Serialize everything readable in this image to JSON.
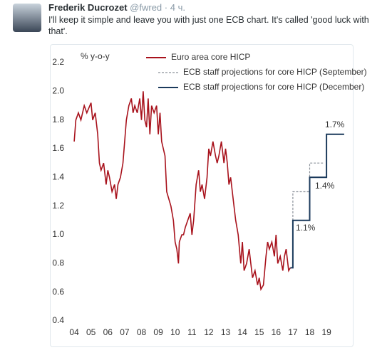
{
  "tweet": {
    "author": "Frederik Ducrozet",
    "handle": "@fwred",
    "time": "· 4 ч.",
    "text_lines": [
      "I'll keep it simple and leave you with just one ECB chart. It's called 'good luck with",
      "that'."
    ]
  },
  "chart_data": {
    "type": "line",
    "ylabel": "% y-o-y",
    "xlim": [
      3.7,
      20.35
    ],
    "ylim": [
      0.4,
      2.2
    ],
    "xticks": [
      {
        "value": 4,
        "label": "04"
      },
      {
        "value": 5,
        "label": "05"
      },
      {
        "value": 6,
        "label": "06"
      },
      {
        "value": 7,
        "label": "07"
      },
      {
        "value": 8,
        "label": "08"
      },
      {
        "value": 9,
        "label": "09"
      },
      {
        "value": 10,
        "label": "10"
      },
      {
        "value": 11,
        "label": "11"
      },
      {
        "value": 12,
        "label": "12"
      },
      {
        "value": 13,
        "label": "13"
      },
      {
        "value": 14,
        "label": "14"
      },
      {
        "value": 15,
        "label": "15"
      },
      {
        "value": 16,
        "label": "16"
      },
      {
        "value": 17,
        "label": "17"
      },
      {
        "value": 18,
        "label": "18"
      },
      {
        "value": 19,
        "label": "19"
      }
    ],
    "yticks": [
      0.4,
      0.6,
      0.8,
      {
        "value": 1,
        "label": "1.0"
      },
      1.2,
      1.4,
      1.6,
      1.8,
      {
        "value": 2,
        "label": "2.0"
      },
      2.2
    ],
    "grid": false,
    "series": [
      {
        "name": "Euro area core HICP",
        "color": "#a8121c",
        "dash": false,
        "x": [
          4.0,
          4.1,
          4.25,
          4.4,
          4.6,
          4.75,
          5.0,
          5.1,
          5.25,
          5.4,
          5.5,
          5.6,
          5.75,
          5.9,
          6.0,
          6.1,
          6.25,
          6.4,
          6.5,
          6.6,
          6.75,
          6.9,
          7.0,
          7.1,
          7.25,
          7.4,
          7.5,
          7.6,
          7.75,
          7.9,
          8.0,
          8.1,
          8.2,
          8.3,
          8.4,
          8.5,
          8.6,
          8.75,
          8.9,
          9.0,
          9.1,
          9.2,
          9.4,
          9.5,
          9.75,
          9.9,
          10.0,
          10.1,
          10.2,
          10.25,
          10.4,
          10.5,
          10.6,
          10.75,
          10.9,
          11.0,
          11.1,
          11.25,
          11.4,
          11.5,
          11.6,
          11.75,
          11.9,
          12.0,
          12.1,
          12.25,
          12.4,
          12.5,
          12.6,
          12.75,
          12.9,
          13.0,
          13.1,
          13.2,
          13.3,
          13.5,
          13.6,
          13.75,
          13.9,
          14.0,
          14.1,
          14.25,
          14.4,
          14.5,
          14.6,
          14.75,
          14.9,
          15.0,
          15.1,
          15.25,
          15.4,
          15.5,
          15.6,
          15.75,
          15.9,
          16.0,
          16.1,
          16.25,
          16.4,
          16.5,
          16.6,
          16.75,
          16.85
        ],
        "values": [
          1.65,
          1.8,
          1.85,
          1.8,
          1.9,
          1.85,
          1.92,
          1.8,
          1.85,
          1.7,
          1.5,
          1.45,
          1.5,
          1.35,
          1.45,
          1.4,
          1.3,
          1.35,
          1.25,
          1.35,
          1.4,
          1.5,
          1.65,
          1.8,
          1.9,
          1.95,
          1.85,
          1.9,
          1.85,
          1.95,
          1.8,
          2.0,
          1.8,
          1.75,
          1.95,
          1.7,
          1.9,
          1.85,
          1.9,
          1.7,
          1.85,
          1.65,
          1.55,
          1.3,
          1.2,
          1.1,
          0.95,
          0.9,
          0.8,
          0.95,
          1.0,
          1.0,
          1.05,
          1.1,
          1.15,
          1.0,
          1.1,
          1.35,
          1.45,
          1.3,
          1.35,
          1.25,
          1.4,
          1.6,
          1.55,
          1.65,
          1.55,
          1.5,
          1.55,
          1.65,
          1.5,
          1.6,
          1.5,
          1.35,
          1.4,
          1.2,
          1.1,
          1.0,
          0.8,
          0.95,
          0.75,
          0.8,
          0.9,
          0.8,
          0.7,
          0.75,
          0.65,
          0.7,
          0.62,
          0.65,
          0.85,
          0.95,
          0.9,
          0.95,
          0.85,
          1.0,
          0.8,
          0.85,
          0.75,
          0.85,
          0.9,
          0.75,
          0.77
        ]
      },
      {
        "name": "ECB staff projections for core HICP (September)",
        "color": "#8a9099",
        "dash": true,
        "x": [
          16.85,
          17,
          17,
          18,
          18,
          18.8
        ],
        "values": [
          0.77,
          0.77,
          1.3,
          1.3,
          1.5,
          1.5
        ]
      },
      {
        "name": "ECB staff projections for core HICP (December)",
        "color": "#1b3a5c",
        "dash": false,
        "x": [
          16.85,
          17,
          17,
          18,
          18,
          19,
          19,
          20.05
        ],
        "values": [
          0.77,
          0.77,
          1.1,
          1.1,
          1.4,
          1.4,
          1.7,
          1.7
        ]
      }
    ],
    "annotations": [
      "1.1%",
      "1.4%",
      "1.7%"
    ]
  }
}
